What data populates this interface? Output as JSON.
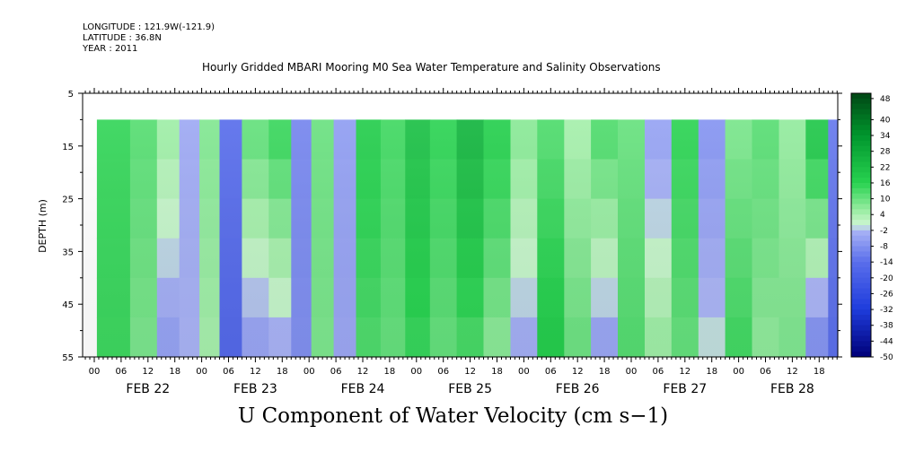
{
  "header": {
    "longitude": "LONGITUDE : 121.9W(-121.9)",
    "latitude": "LATITUDE : 36.8N",
    "year": "YEAR : 2011",
    "title": "Hourly Gridded MBARI Mooring M0 Sea Water Temperature and Salinity Observations"
  },
  "footer": {
    "label": "U Component of Water Velocity (cm s−1)"
  },
  "chart_data": {
    "type": "heatmap",
    "title": "Hourly Gridded MBARI Mooring M0 Sea Water Temperature and Salinity Observations",
    "xlabel": "U Component of Water Velocity (cm s−1)",
    "ylabel": "DEPTH (m)",
    "variable": "U Component of Water Velocity",
    "units": "cm s-1",
    "y_ticks": [
      5,
      15,
      25,
      35,
      45,
      55
    ],
    "ylim": [
      55,
      5
    ],
    "data_depth_range": [
      10,
      55
    ],
    "x_hour_labels": [
      "00",
      "06",
      "12",
      "18",
      "00",
      "06",
      "12",
      "18",
      "00",
      "06",
      "12",
      "18",
      "00",
      "06",
      "12",
      "18",
      "00",
      "06",
      "12",
      "18",
      "00",
      "06",
      "12",
      "18",
      "00",
      "06",
      "12",
      "18"
    ],
    "x_day_labels": [
      "FEB 22",
      "FEB 23",
      "FEB 24",
      "FEB 25",
      "FEB 26",
      "FEB 27",
      "FEB 28"
    ],
    "colorbar_labels": [
      "48",
      "40",
      "34",
      "28",
      "22",
      "16",
      "10",
      "4",
      "-2",
      "-8",
      "-14",
      "-20",
      "-26",
      "-32",
      "-38",
      "-44",
      "-50"
    ],
    "colorbar_range": [
      -50,
      50
    ],
    "colors": {
      "strong_positive": "#006400",
      "positive": "#1fd24a",
      "weak_positive": "#aef0b4",
      "weak_negative": "#a7b0f5",
      "negative": "#5f6fe8",
      "strong_negative": "#000080"
    },
    "columns": [
      {
        "day": "FEB 22",
        "hour": 5,
        "surface": 15,
        "bottom": 14
      },
      {
        "day": "FEB 22",
        "hour": 11,
        "surface": 12,
        "bottom": 8
      },
      {
        "day": "FEB 22",
        "hour": 17,
        "surface": 6,
        "bottom": -6
      },
      {
        "day": "FEB 22",
        "hour": 21,
        "surface": -4,
        "bottom": -2
      },
      {
        "day": "FEB 23",
        "hour": 2,
        "surface": 8,
        "bottom": 4
      },
      {
        "day": "FEB 23",
        "hour": 6,
        "surface": -14,
        "bottom": -16
      },
      {
        "day": "FEB 23",
        "hour": 12,
        "surface": 12,
        "bottom": -6
      },
      {
        "day": "FEB 23",
        "hour": 18,
        "surface": 16,
        "bottom": -4
      },
      {
        "day": "FEB 23",
        "hour": 22,
        "surface": -10,
        "bottom": -8
      },
      {
        "day": "FEB 24",
        "hour": 3,
        "surface": 10,
        "bottom": 8
      },
      {
        "day": "FEB 24",
        "hour": 8,
        "surface": -6,
        "bottom": -4
      },
      {
        "day": "FEB 24",
        "hour": 13,
        "surface": 18,
        "bottom": 12
      },
      {
        "day": "FEB 24",
        "hour": 19,
        "surface": 14,
        "bottom": 10
      },
      {
        "day": "FEB 25",
        "hour": 0,
        "surface": 22,
        "bottom": 14
      },
      {
        "day": "FEB 25",
        "hour": 6,
        "surface": 16,
        "bottom": 10
      },
      {
        "day": "FEB 25",
        "hour": 12,
        "surface": 26,
        "bottom": 12
      },
      {
        "day": "FEB 25",
        "hour": 18,
        "surface": 18,
        "bottom": 6
      },
      {
        "day": "FEB 26",
        "hour": 0,
        "surface": 8,
        "bottom": -4
      },
      {
        "day": "FEB 26",
        "hour": 6,
        "surface": 12,
        "bottom": 18
      },
      {
        "day": "FEB 26",
        "hour": 12,
        "surface": 4,
        "bottom": 10
      },
      {
        "day": "FEB 26",
        "hour": 18,
        "surface": 14,
        "bottom": -6
      },
      {
        "day": "FEB 27",
        "hour": 0,
        "surface": 10,
        "bottom": 12
      },
      {
        "day": "FEB 27",
        "hour": 6,
        "surface": -6,
        "bottom": 6
      },
      {
        "day": "FEB 27",
        "hour": 12,
        "surface": 16,
        "bottom": 10
      },
      {
        "day": "FEB 27",
        "hour": 18,
        "surface": -8,
        "bottom": 0
      },
      {
        "day": "FEB 28",
        "hour": 0,
        "surface": 8,
        "bottom": 14
      },
      {
        "day": "FEB 28",
        "hour": 6,
        "surface": 12,
        "bottom": 6
      },
      {
        "day": "FEB 28",
        "hour": 12,
        "surface": 6,
        "bottom": 8
      },
      {
        "day": "FEB 28",
        "hour": 18,
        "surface": 22,
        "bottom": -10
      },
      {
        "day": "FEB 28",
        "hour": 22,
        "surface": -12,
        "bottom": -14
      }
    ]
  }
}
